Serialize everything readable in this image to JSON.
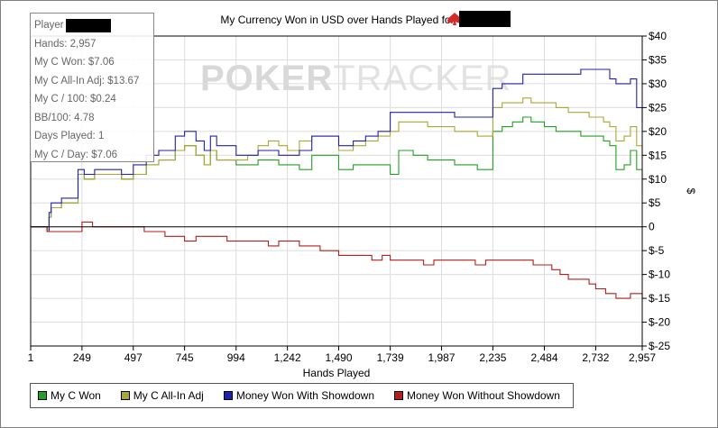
{
  "chart_data": {
    "type": "line",
    "title": "My Currency Won in USD over Hands Played for",
    "xlabel": "Hands Played",
    "ylabel": "$",
    "xlim": [
      1,
      2957
    ],
    "ylim": [
      -25,
      40
    ],
    "x_ticks": [
      1,
      249,
      497,
      745,
      994,
      1242,
      1490,
      1739,
      1987,
      2235,
      2484,
      2732,
      2957
    ],
    "x_tick_labels": [
      "1",
      "249",
      "497",
      "745",
      "994",
      "1,242",
      "1,490",
      "1,739",
      "1,987",
      "2,235",
      "2,484",
      "2,732",
      "2,957"
    ],
    "y_ticks": [
      -25,
      -20,
      -15,
      -10,
      -5,
      0,
      5,
      10,
      15,
      20,
      25,
      30,
      35,
      40
    ],
    "y_tick_labels": [
      "$-25",
      "$-20",
      "$-15",
      "$-10",
      "$-5",
      "0",
      "$5",
      "$10",
      "$15",
      "$20",
      "$25",
      "$30",
      "$35",
      "$40"
    ],
    "grid": true,
    "legend_position": "bottom",
    "series": [
      {
        "name": "My C Won",
        "color": "#22a022",
        "x": [
          1,
          80,
          90,
          100,
          150,
          210,
          230,
          260,
          310,
          380,
          440,
          497,
          560,
          620,
          700,
          745,
          800,
          840,
          870,
          900,
          994,
          1050,
          1100,
          1150,
          1200,
          1242,
          1300,
          1360,
          1420,
          1490,
          1560,
          1620,
          1680,
          1739,
          1780,
          1850,
          1920,
          1987,
          2050,
          2100,
          2160,
          2200,
          2235,
          2280,
          2330,
          2380,
          2420,
          2484,
          2540,
          2600,
          2660,
          2700,
          2732,
          2770,
          2800,
          2830,
          2870,
          2900,
          2930,
          2957
        ],
        "y": [
          0,
          -1,
          2,
          4,
          5,
          5,
          11,
          10,
          11,
          11,
          10,
          11,
          13,
          14,
          16,
          17,
          15,
          13,
          16,
          14,
          13,
          13,
          14,
          14,
          13,
          13,
          12,
          15,
          15,
          12,
          13,
          13,
          13,
          11,
          16,
          15,
          14,
          14,
          13,
          13,
          12,
          12,
          20,
          21,
          22,
          23,
          22,
          21,
          20,
          20,
          19,
          19,
          19,
          18,
          17,
          12,
          13,
          16,
          12,
          7
        ]
      },
      {
        "name": "My C All-In Adj",
        "color": "#a8a832",
        "x": [
          1,
          80,
          90,
          100,
          150,
          210,
          230,
          260,
          310,
          380,
          440,
          497,
          560,
          620,
          700,
          745,
          800,
          840,
          870,
          900,
          994,
          1050,
          1100,
          1150,
          1200,
          1242,
          1300,
          1360,
          1420,
          1490,
          1560,
          1620,
          1680,
          1739,
          1780,
          1850,
          1920,
          1987,
          2050,
          2100,
          2160,
          2200,
          2235,
          2280,
          2330,
          2380,
          2420,
          2484,
          2540,
          2600,
          2660,
          2700,
          2732,
          2770,
          2800,
          2830,
          2870,
          2900,
          2930,
          2957
        ],
        "y": [
          0,
          -1,
          2,
          4,
          5,
          5,
          11,
          10,
          11,
          11,
          10,
          11,
          13,
          14,
          16,
          17,
          15,
          13,
          16,
          14,
          14,
          15,
          17,
          18,
          17,
          16,
          18,
          19,
          19,
          16,
          17,
          18,
          19,
          20,
          22,
          22,
          21,
          21,
          20,
          20,
          19,
          19,
          25,
          26,
          26,
          27,
          26,
          26,
          25,
          24,
          24,
          23,
          23,
          22,
          21,
          18,
          19,
          21,
          17,
          14
        ]
      },
      {
        "name": "Money Won With Showdown",
        "color": "#2020b4",
        "x": [
          1,
          80,
          90,
          100,
          150,
          210,
          230,
          260,
          310,
          380,
          440,
          497,
          560,
          620,
          700,
          745,
          800,
          840,
          870,
          900,
          994,
          1050,
          1100,
          1150,
          1200,
          1242,
          1300,
          1360,
          1420,
          1490,
          1560,
          1620,
          1680,
          1739,
          1780,
          1850,
          1920,
          1987,
          2050,
          2100,
          2160,
          2200,
          2235,
          2280,
          2330,
          2380,
          2420,
          2484,
          2540,
          2600,
          2660,
          2700,
          2732,
          2770,
          2800,
          2830,
          2870,
          2900,
          2930,
          2957
        ],
        "y": [
          0,
          -1,
          3,
          5,
          6,
          6,
          12,
          11,
          12,
          12,
          11,
          13,
          15,
          16,
          19,
          20,
          18,
          16,
          19,
          17,
          15,
          15,
          16,
          16,
          15,
          15,
          16,
          19,
          19,
          17,
          18,
          19,
          20,
          24,
          24,
          24,
          24,
          24,
          23,
          23,
          23,
          23,
          29,
          30,
          30,
          32,
          32,
          32,
          32,
          32,
          33,
          33,
          33,
          33,
          31,
          30,
          30,
          31,
          25,
          22
        ]
      },
      {
        "name": "Money Won Without Showdown",
        "color": "#b41e1e",
        "x": [
          1,
          40,
          80,
          100,
          150,
          200,
          249,
          300,
          350,
          400,
          450,
          497,
          550,
          600,
          650,
          700,
          745,
          800,
          850,
          900,
          950,
          994,
          1050,
          1100,
          1150,
          1200,
          1242,
          1300,
          1350,
          1400,
          1450,
          1490,
          1550,
          1600,
          1650,
          1700,
          1739,
          1800,
          1850,
          1900,
          1950,
          1987,
          2050,
          2100,
          2150,
          2200,
          2235,
          2280,
          2330,
          2380,
          2430,
          2484,
          2520,
          2560,
          2600,
          2650,
          2700,
          2732,
          2780,
          2830,
          2870,
          2900,
          2930,
          2957
        ],
        "y": [
          0,
          0,
          -1,
          -1,
          -1,
          -1,
          1,
          0,
          0,
          0,
          0,
          0,
          -1,
          -1,
          -2,
          -2,
          -3,
          -2,
          -2,
          -2,
          -3,
          -3,
          -3,
          -3,
          -4,
          -3,
          -3,
          -4,
          -4,
          -5,
          -5,
          -6,
          -6,
          -6,
          -7,
          -6,
          -7,
          -7,
          -7,
          -8,
          -7,
          -7,
          -7,
          -7,
          -8,
          -7,
          -7,
          -7,
          -7,
          -7,
          -8,
          -8,
          -9,
          -10,
          -11,
          -11,
          -12,
          -13,
          -14,
          -15,
          -15,
          -14,
          -14,
          -15
        ]
      }
    ]
  },
  "stats": {
    "player_label": "Player",
    "hands": "Hands: 2,957",
    "my_c_won": "My C Won: $7.06",
    "my_c_allin_adj": "My C All-In Adj: $13.67",
    "my_c_100": "My C / 100: $0.24",
    "bb_100": "BB/100: 4.78",
    "days_played": "Days Played: 1",
    "my_c_day": "My C / Day: $7.06"
  },
  "watermark": {
    "part1": "POKER",
    "part2": "TRACKER"
  },
  "legend": {
    "items": [
      {
        "label": "My C Won",
        "color": "#22a022"
      },
      {
        "label": "My C All-In Adj",
        "color": "#a8a832"
      },
      {
        "label": "Money Won With Showdown",
        "color": "#2020b4"
      },
      {
        "label": "Money Won Without Showdown",
        "color": "#b41e1e"
      }
    ]
  },
  "colors": {
    "grid": "#dcdcdc",
    "axis": "#000000",
    "redaction": "#000000"
  }
}
